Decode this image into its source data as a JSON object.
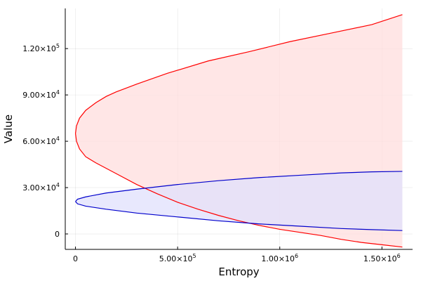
{
  "chart_data": {
    "type": "area",
    "xlabel": "Entropy",
    "ylabel": "Value",
    "grid": true,
    "legend": "none",
    "xlim": [
      -50000,
      1650000
    ],
    "ylim": [
      -10000,
      146000
    ],
    "x_ticks": [
      {
        "value": 0,
        "label": "0"
      },
      {
        "value": 500000,
        "label": "5.00×10^5"
      },
      {
        "value": 1000000,
        "label": "1.00×10^6"
      },
      {
        "value": 1500000,
        "label": "1.50×10^6"
      }
    ],
    "y_ticks": [
      {
        "value": 0,
        "label": "0"
      },
      {
        "value": 30000,
        "label": "3.00×10^4"
      },
      {
        "value": 60000,
        "label": "6.00×10^4"
      },
      {
        "value": 90000,
        "label": "9.00×10^4"
      },
      {
        "value": 120000,
        "label": "1.20×10^5"
      }
    ],
    "series": [
      {
        "color": "#ff0000",
        "fill": "#ffdede",
        "upper": [
          [
            0,
            65000
          ],
          [
            5000,
            70000
          ],
          [
            20000,
            75000
          ],
          [
            50000,
            80000
          ],
          [
            100000,
            85000
          ],
          [
            150000,
            89000
          ],
          [
            200000,
            92000
          ],
          [
            300000,
            97000
          ],
          [
            450000,
            104000
          ],
          [
            650000,
            112000
          ],
          [
            850000,
            118000
          ],
          [
            1050000,
            124500
          ],
          [
            1250000,
            130000
          ],
          [
            1450000,
            135500
          ],
          [
            1600000,
            142000
          ]
        ],
        "lower": [
          [
            0,
            65000
          ],
          [
            5000,
            60000
          ],
          [
            20000,
            55000
          ],
          [
            50000,
            50000
          ],
          [
            100000,
            46000
          ],
          [
            200000,
            39000
          ],
          [
            300000,
            32000
          ],
          [
            400000,
            26000
          ],
          [
            500000,
            20500
          ],
          [
            600000,
            16000
          ],
          [
            700000,
            12000
          ],
          [
            800000,
            8500
          ],
          [
            900000,
            5500
          ],
          [
            1000000,
            3000
          ],
          [
            1100000,
            1000
          ],
          [
            1200000,
            -1000
          ],
          [
            1300000,
            -3500
          ],
          [
            1400000,
            -5500
          ],
          [
            1500000,
            -7000
          ],
          [
            1600000,
            -8500
          ]
        ]
      },
      {
        "color": "#0000cc",
        "fill": "#e0e0fc",
        "upper": [
          [
            0,
            21000
          ],
          [
            10000,
            22500
          ],
          [
            50000,
            24000
          ],
          [
            150000,
            26500
          ],
          [
            300000,
            29000
          ],
          [
            500000,
            32000
          ],
          [
            700000,
            34500
          ],
          [
            900000,
            36500
          ],
          [
            1100000,
            38000
          ],
          [
            1300000,
            39500
          ],
          [
            1450000,
            40200
          ],
          [
            1600000,
            40500
          ]
        ],
        "lower": [
          [
            0,
            21000
          ],
          [
            10000,
            19500
          ],
          [
            50000,
            18000
          ],
          [
            150000,
            16000
          ],
          [
            300000,
            13500
          ],
          [
            500000,
            11000
          ],
          [
            700000,
            8500
          ],
          [
            900000,
            6500
          ],
          [
            1100000,
            5000
          ],
          [
            1300000,
            3500
          ],
          [
            1450000,
            2800
          ],
          [
            1600000,
            2200
          ]
        ]
      }
    ],
    "overlap_color": "#dfc8e6"
  }
}
